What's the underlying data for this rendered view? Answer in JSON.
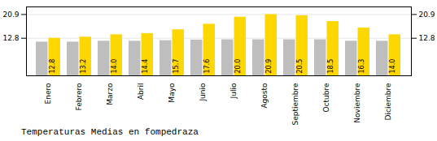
{
  "chart_data": {
    "type": "bar",
    "title": "Temperaturas Medias en fompedraza",
    "categories": [
      "Enero",
      "Febrero",
      "Marzo",
      "Abril",
      "Mayo",
      "Junio",
      "Julio",
      "Agosto",
      "Septiembre",
      "Octubre",
      "Noviembre",
      "Diciembre"
    ],
    "series": [
      {
        "color": "#BEBEBE",
        "values": [
          11.5,
          11.5,
          11.8,
          11.8,
          12.0,
          12.2,
          12.3,
          12.3,
          12.3,
          12.3,
          11.8,
          11.8
        ]
      },
      {
        "color": "#FFD700",
        "values": [
          12.8,
          13.2,
          14.0,
          14.4,
          15.7,
          17.6,
          20.0,
          20.9,
          20.5,
          18.5,
          16.3,
          14.0
        ],
        "data_labels": true,
        "value_labels": [
          "12.8",
          "13.2",
          "14.0",
          "14.4",
          "15.7",
          "17.6",
          "20.0",
          "20.9",
          "20.5",
          "18.5",
          "16.3",
          "14.0"
        ]
      }
    ],
    "ylim": [
      0.0,
      23.5
    ],
    "yticks": [
      12.8,
      20.9
    ],
    "grid": true
  }
}
